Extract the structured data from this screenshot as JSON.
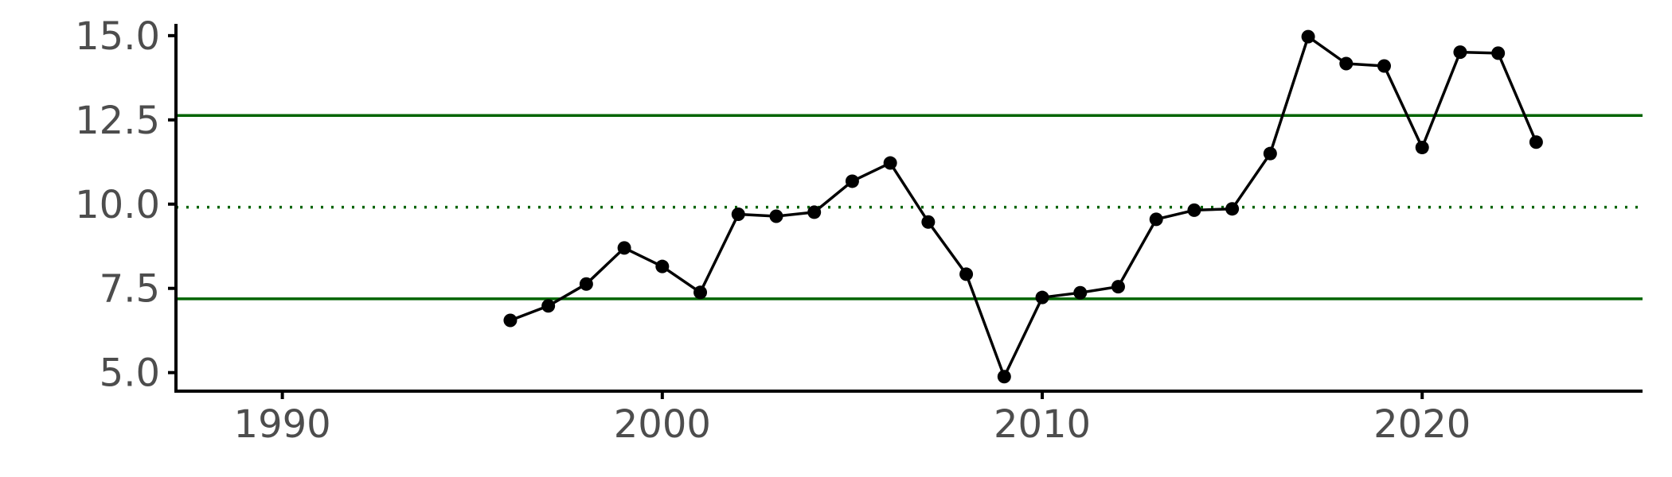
{
  "chart_data": {
    "type": "line",
    "title": "",
    "xlabel": "",
    "ylabel": "",
    "xlim": [
      1987.2,
      2025.8
    ],
    "ylim": [
      4.45,
      15.35
    ],
    "x_ticks": [
      {
        "value": 1990,
        "label": "1990"
      },
      {
        "value": 2000,
        "label": "2000"
      },
      {
        "value": 2010,
        "label": "2010"
      },
      {
        "value": 2020,
        "label": "2020"
      }
    ],
    "y_ticks": [
      {
        "value": 5.0,
        "label": "5.0"
      },
      {
        "value": 7.5,
        "label": "7.5"
      },
      {
        "value": 10.0,
        "label": "10.0"
      },
      {
        "value": 12.5,
        "label": "12.5"
      },
      {
        "value": 15.0,
        "label": "15.0"
      }
    ],
    "grid": false,
    "series": [
      {
        "color": "#000000",
        "x": [
          1996,
          1997,
          1998,
          1999,
          2000,
          2001,
          2002,
          2003,
          2004,
          2005,
          2006,
          2007,
          2008,
          2009,
          2010,
          2011,
          2012,
          2013,
          2014,
          2015,
          2016,
          2017,
          2018,
          2019,
          2020,
          2021,
          2022,
          2023
        ],
        "y": [
          6.55,
          6.98,
          7.63,
          8.7,
          8.15,
          7.38,
          9.7,
          9.64,
          9.76,
          10.68,
          11.22,
          9.47,
          7.92,
          4.88,
          7.23,
          7.37,
          7.55,
          9.55,
          9.82,
          9.86,
          11.5,
          14.97,
          14.17,
          14.1,
          11.68,
          14.51,
          14.48,
          11.84
        ]
      }
    ],
    "reference_lines": [
      {
        "y": 12.63,
        "style": "solid",
        "color": "#006400"
      },
      {
        "y": 9.91,
        "style": "dotted",
        "color": "#006400"
      },
      {
        "y": 7.19,
        "style": "solid",
        "color": "#006400"
      }
    ]
  }
}
